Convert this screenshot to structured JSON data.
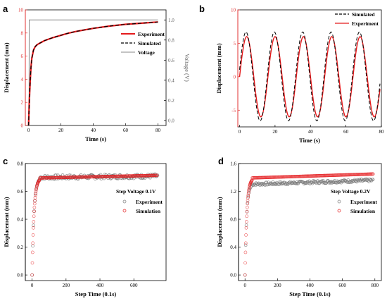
{
  "panels": {
    "a": "a",
    "b": "b",
    "c": "c",
    "d": "d"
  },
  "colors": {
    "experiment": "#e41a1c",
    "simulated": "#000000",
    "voltage": "#888888",
    "red_axis": "#e03030"
  },
  "chart_data": [
    {
      "type": "line",
      "panel": "a",
      "xlabel": "Time (s)",
      "ylabel": "Displacement (mm)",
      "y2label": "Voltage (V)",
      "xlim": [
        -2,
        85
      ],
      "ylim": [
        0,
        10
      ],
      "y2lim": [
        -0.05,
        1.1
      ],
      "xticks": [
        "0",
        "20",
        "40",
        "60",
        "80"
      ],
      "yticks": [
        "0",
        "2",
        "4",
        "6",
        "8",
        "10"
      ],
      "y2ticks": [
        "0.0",
        "0.2",
        "0.4",
        "0.6",
        "0.8",
        "1.0"
      ],
      "legend_position": "center-right",
      "series": [
        {
          "name": "Experiment",
          "style": "solid",
          "x": [
            0,
            0.5,
            1,
            1.5,
            2,
            3,
            4,
            5,
            6,
            8,
            10,
            15,
            20,
            25,
            30,
            40,
            50,
            60,
            70,
            80
          ],
          "y": [
            0,
            2.2,
            3.8,
            5.0,
            5.8,
            6.5,
            6.8,
            6.95,
            7.05,
            7.2,
            7.35,
            7.6,
            7.8,
            8.0,
            8.15,
            8.4,
            8.6,
            8.75,
            8.85,
            8.95
          ]
        },
        {
          "name": "Simulated",
          "style": "dashed",
          "x": [
            0,
            0.5,
            1,
            1.5,
            2,
            3,
            4,
            5,
            6,
            8,
            10,
            15,
            20,
            25,
            30,
            40,
            50,
            60,
            70,
            80
          ],
          "y": [
            0,
            2.2,
            3.8,
            5.0,
            5.8,
            6.5,
            6.8,
            6.95,
            7.05,
            7.2,
            7.35,
            7.6,
            7.8,
            8.0,
            8.15,
            8.4,
            8.6,
            8.75,
            8.85,
            8.95
          ]
        },
        {
          "name": "Voltage",
          "style": "solid",
          "axis": "y2",
          "x": [
            0,
            0.3,
            0.4,
            80
          ],
          "y": [
            0,
            0,
            1.0,
            1.0
          ]
        }
      ]
    },
    {
      "type": "line",
      "panel": "b",
      "xlabel": "Time (s)",
      "ylabel": "Displacement (mm)",
      "xlim": [
        -1,
        80
      ],
      "ylim": [
        -7.5,
        10
      ],
      "xticks": [
        "0",
        "20",
        "40",
        "60",
        "80"
      ],
      "yticks": [
        "-5",
        "0",
        "5",
        "10"
      ],
      "legend_position": "top-right",
      "period_s": 16,
      "series": [
        {
          "name": "Simulated",
          "style": "dashed",
          "peak": 6.7,
          "trough": -6.6
        },
        {
          "name": "Experiment",
          "style": "solid",
          "peak": 6.0,
          "trough": -6.0
        }
      ]
    },
    {
      "type": "scatter",
      "panel": "c",
      "xlabel": "Step Time (0.1s)",
      "ylabel": "Displacement (mm)",
      "xlim": [
        -40,
        790
      ],
      "ylim": [
        -0.04,
        0.8
      ],
      "xticks": [
        "0",
        "200",
        "400",
        "600"
      ],
      "yticks": [
        "0.0",
        "0.2",
        "0.4",
        "0.6",
        "0.8"
      ],
      "annotation": "Step Voltage 0.1V",
      "legend_position": "center-right",
      "series": [
        {
          "name": "Experiment",
          "steady": 0.7,
          "end": 0.71,
          "rise_end": 45,
          "noise": 0.015
        },
        {
          "name": "Simulation",
          "steady": 0.695,
          "end": 0.715,
          "rise_end": 45,
          "noise": 0.0
        }
      ]
    },
    {
      "type": "scatter",
      "panel": "d",
      "xlabel": "Step Time (0.1s)",
      "ylabel": "Displacement (mm)",
      "xlim": [
        -40,
        840
      ],
      "ylim": [
        -0.08,
        1.6
      ],
      "xticks": [
        "0",
        "200",
        "400",
        "600",
        "800"
      ],
      "yticks": [
        "0.0",
        "0.4",
        "0.8",
        "1.2",
        "1.6"
      ],
      "annotation": "Step Voltage 0.2V",
      "legend_position": "center-right",
      "series": [
        {
          "name": "Experiment",
          "steady": 1.3,
          "end": 1.36,
          "rise_end": 40,
          "noise": 0.02
        },
        {
          "name": "Simulation",
          "steady": 1.39,
          "end": 1.45,
          "rise_end": 45,
          "noise": 0.0
        }
      ]
    }
  ]
}
